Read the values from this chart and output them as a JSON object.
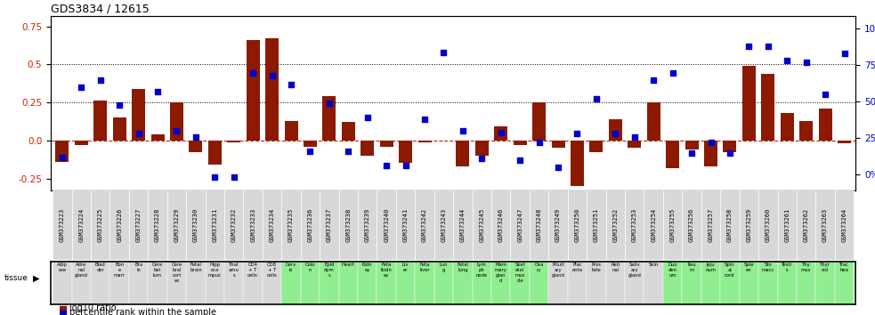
{
  "title": "GDS3834 / 12615",
  "gsm_labels": [
    "GSM373223",
    "GSM373224",
    "GSM373225",
    "GSM373226",
    "GSM373227",
    "GSM373228",
    "GSM373229",
    "GSM373230",
    "GSM373231",
    "GSM373232",
    "GSM373233",
    "GSM373234",
    "GSM373235",
    "GSM373236",
    "GSM373237",
    "GSM373238",
    "GSM373239",
    "GSM373240",
    "GSM373241",
    "GSM373242",
    "GSM373243",
    "GSM373244",
    "GSM373245",
    "GSM373246",
    "GSM373247",
    "GSM373248",
    "GSM373249",
    "GSM373250",
    "GSM373251",
    "GSM373252",
    "GSM373253",
    "GSM373254",
    "GSM373255",
    "GSM373256",
    "GSM373257",
    "GSM373258",
    "GSM373259",
    "GSM373260",
    "GSM373261",
    "GSM373262",
    "GSM373263",
    "GSM373264"
  ],
  "tissue_labels": [
    "Adip\nose",
    "Adre\nnal\ngland",
    "Blad\nder",
    "Bon\ne\nmarr",
    "Bra\nin",
    "Cere\nbel\nlum",
    "Cere\nbral\ncort\nex",
    "Fetal\nbrain",
    "Hipp\noca\nmpus",
    "Thal\namu\ns",
    "CD4\n+ T\ncells",
    "CD8\n+ T\ncells",
    "Cerv\nix",
    "Colo\nn",
    "Epid\ndym\ns",
    "Heart",
    "Kidn\ney",
    "Feta\nlkidn\ney",
    "Liv\ner",
    "Feta\nliver",
    "Lun\ng",
    "Fetal\nlung",
    "Lym\nph\nnode",
    "Mam\nmary\nglan\nd",
    "Sket\netal\nmus\ncle",
    "Ova\nry",
    "Pituit\nary\ngland",
    "Plac\nenta",
    "Pros\ntate",
    "Reti\nnal",
    "Saliv\nary\ngland",
    "Skin",
    "Duo\nden\num",
    "Ileu\nm",
    "Jeju\nnum",
    "Spin\nal\ncord",
    "Sple\nen",
    "Sto\nmacs",
    "Testi\ns",
    "Thy\nmus",
    "Thyr\noid",
    "Trac\nhea"
  ],
  "log10_ratio": [
    -0.14,
    -0.03,
    0.26,
    0.15,
    0.34,
    0.04,
    0.25,
    -0.08,
    -0.16,
    -0.01,
    0.66,
    0.67,
    0.13,
    -0.04,
    0.29,
    0.12,
    -0.1,
    -0.04,
    -0.15,
    -0.01,
    0.0,
    -0.17,
    -0.1,
    0.09,
    -0.03,
    0.25,
    -0.05,
    -0.3,
    -0.08,
    0.14,
    -0.05,
    0.25,
    -0.18,
    -0.06,
    -0.17,
    -0.08,
    0.49,
    0.44,
    0.18,
    0.13,
    0.21,
    -0.02
  ],
  "percentile_rank": [
    12,
    60,
    65,
    48,
    28,
    57,
    30,
    26,
    -2,
    -2,
    70,
    68,
    62,
    16,
    49,
    16,
    39,
    6,
    6,
    38,
    84,
    30,
    11,
    29,
    10,
    22,
    5,
    28,
    52,
    28,
    26,
    65,
    70,
    15,
    22,
    15,
    88,
    88,
    78,
    77,
    55,
    83
  ],
  "bar_color": "#8B1A00",
  "dot_color": "#0000CD",
  "bg_grey": "#D8D8D8",
  "bg_green": "#90EE90",
  "zero_line_color": "#CC2200",
  "dotted_line_color": "#000000",
  "yticks_left": [
    -0.25,
    0.0,
    0.25,
    0.5,
    0.75
  ],
  "yticks_right": [
    0,
    25,
    50,
    75,
    100
  ],
  "legend_red": "log10 ratio",
  "legend_blue": "percentile rank within the sample",
  "tissue_bg": [
    "grey",
    "grey",
    "grey",
    "grey",
    "grey",
    "grey",
    "grey",
    "grey",
    "grey",
    "grey",
    "grey",
    "grey",
    "green",
    "green",
    "green",
    "green",
    "green",
    "green",
    "green",
    "green",
    "green",
    "green",
    "green",
    "green",
    "green",
    "green",
    "grey",
    "grey",
    "grey",
    "grey",
    "grey",
    "grey",
    "green",
    "green",
    "green",
    "green",
    "green",
    "green",
    "green",
    "green",
    "green",
    "green"
  ]
}
